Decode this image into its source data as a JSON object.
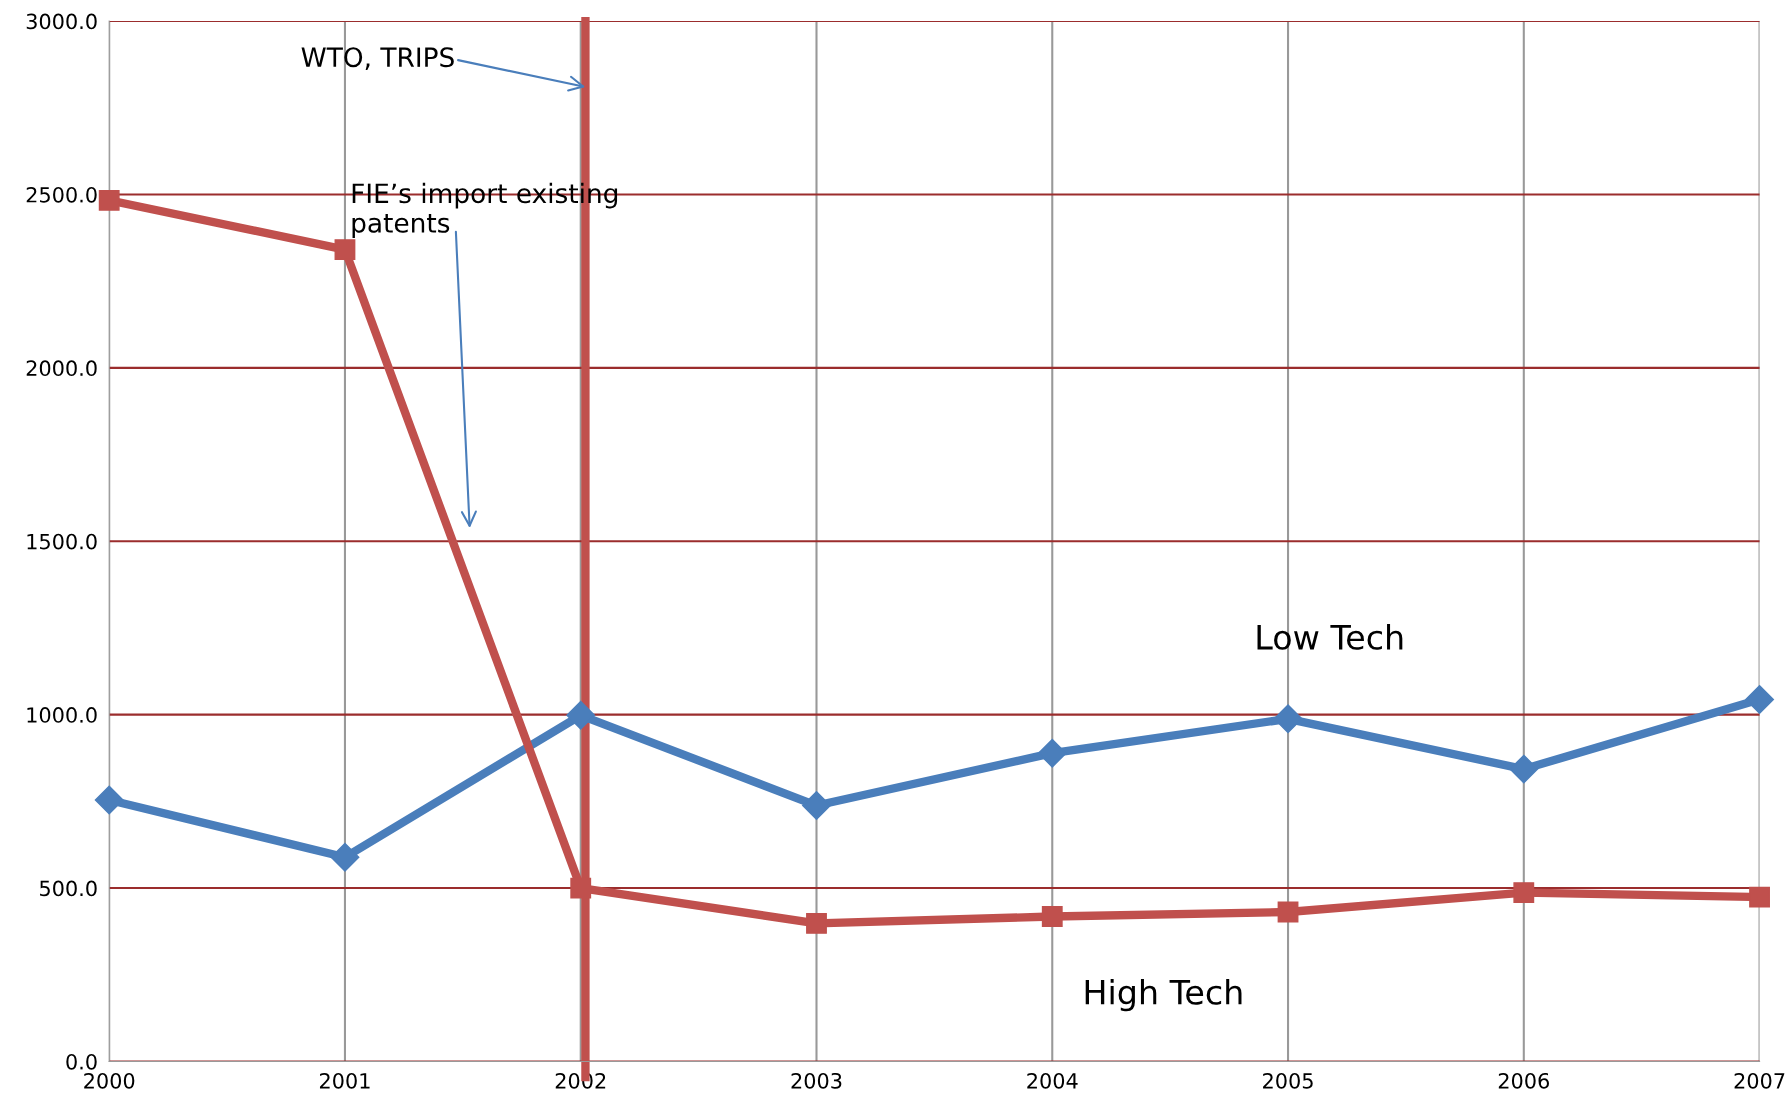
{
  "chart_data": {
    "type": "line",
    "x": [
      2000,
      2001,
      2002,
      2003,
      2004,
      2005,
      2006,
      2007
    ],
    "series": [
      {
        "name": "Low Tech",
        "color": "#4a7ebb",
        "values": [
          754,
          589,
          998,
          738,
          889,
          988,
          843,
          1044
        ],
        "marker": "diamond"
      },
      {
        "name": "High Tech",
        "color": "#c0504d",
        "values": [
          2483,
          2341,
          500,
          398,
          418,
          431,
          487,
          474
        ],
        "marker": "square"
      }
    ],
    "xlim": [
      2000,
      2007
    ],
    "xticks": [
      2000,
      2001,
      2002,
      2003,
      2004,
      2005,
      2006,
      2007
    ],
    "ylim": [
      0,
      3000
    ],
    "yticks": [
      {
        "value": 0,
        "label": "0.0"
      },
      {
        "value": 500,
        "label": "500.0"
      },
      {
        "value": 1000,
        "label": "1000.0"
      },
      {
        "value": 1500,
        "label": "1500.0"
      },
      {
        "value": 2000,
        "label": "2000.0"
      },
      {
        "value": 2500,
        "label": "2500.0"
      },
      {
        "value": 3000,
        "label": "3000.0"
      }
    ],
    "grid": true,
    "legend": false,
    "line_style": "solid",
    "ref_lines": [
      {
        "axis": "x",
        "value": 2002.02,
        "color": "#c0504d",
        "line_style": "solid"
      }
    ],
    "annotations": [
      {
        "text": "WTO, TRIPS",
        "x": 2002.02,
        "y": 2810
      },
      "FIE’s import existing\npatents"
    ]
  }
}
